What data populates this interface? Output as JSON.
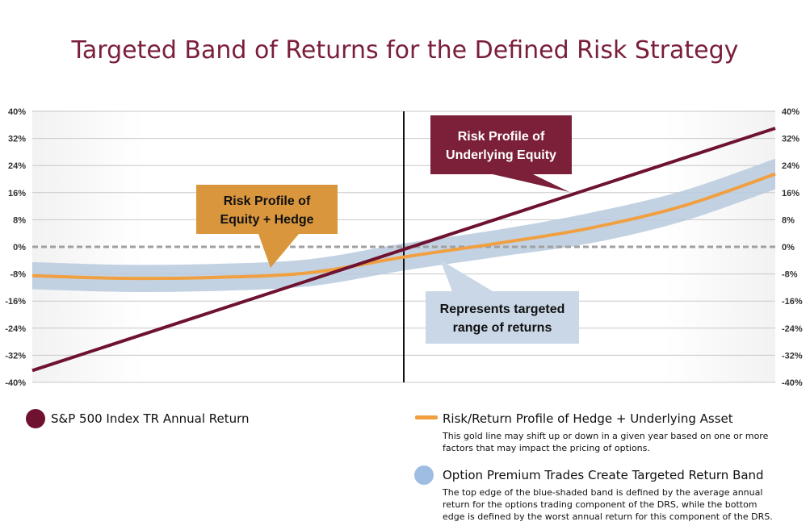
{
  "title": "Targeted Band of Returns for the Defined Risk Strategy",
  "colors": {
    "title": "#7a1e3a",
    "sp500": "#6e1230",
    "hedge": "#f0a040",
    "band": "#b8cade",
    "legend_band": "#9fbde3",
    "callout_equity": "#7b2038",
    "callout_hedge": "#d9963d",
    "callout_band": "#c9d7e6",
    "zero_line": "#a0a0a0",
    "grid": "#c8c8c8"
  },
  "chart_data": {
    "type": "line",
    "title": "Targeted Band of Returns for the Defined Risk Strategy",
    "xlabel": "",
    "ylabel": "",
    "ylim": [
      -40,
      40
    ],
    "y_ticks": [
      "40%",
      "32%",
      "24%",
      "16%",
      "8%",
      "0%",
      "-8%",
      "-16%",
      "-24%",
      "-32%",
      "-40%"
    ],
    "y_tick_values": [
      40,
      32,
      24,
      16,
      8,
      0,
      -8,
      -16,
      -24,
      -32,
      -40
    ],
    "x_range": [
      -40,
      40
    ],
    "grid": true,
    "vertical_reference": 0,
    "series": [
      {
        "name": "S&P 500 Index TR Annual Return",
        "x": [
          -40,
          40
        ],
        "y": [
          -36.5,
          35
        ]
      },
      {
        "name": "Risk/Return Profile of Hedge + Underlying Asset",
        "x": [
          -40,
          -30,
          -20,
          -10,
          0,
          10,
          20,
          30,
          40
        ],
        "y": [
          -8.5,
          -9.3,
          -9,
          -7.6,
          -3,
          1,
          5.5,
          12,
          21.5
        ]
      },
      {
        "name": "Option Premium Trades Create Targeted Return Band",
        "x": [
          -40,
          -30,
          -20,
          -10,
          0,
          10,
          20,
          30,
          40
        ],
        "y_top": [
          -4.5,
          -5.3,
          -5,
          -3.6,
          1,
          5,
          10,
          16.5,
          26
        ],
        "y_bottom": [
          -12.5,
          -13.3,
          -13,
          -11.6,
          -7,
          -3,
          1,
          7.5,
          17
        ]
      }
    ],
    "annotations": [
      {
        "id": "equity",
        "lines": [
          "Risk Profile of",
          "Underlying Equity"
        ]
      },
      {
        "id": "hedge",
        "lines": [
          "Risk Profile of",
          "Equity + Hedge"
        ]
      },
      {
        "id": "band",
        "lines": [
          "Represents targeted",
          "range of returns"
        ]
      }
    ]
  },
  "legend": {
    "sp500_label": "S&P 500 Index TR Annual Return",
    "hedge_label": "Risk/Return Profile of Hedge + Underlying Asset",
    "hedge_note_1": "This gold line may shift up or down in a given year based on one or more",
    "hedge_note_2": "factors that may impact the pricing of options.",
    "band_label": "Option Premium Trades Create Targeted Return Band",
    "band_note_1": "The top edge of the blue-shaded band is defined by the average annual",
    "band_note_2": "return for the options trading component of the DRS, while the bottom",
    "band_note_3": "edge is defined by the worst annual return for this component of the DRS."
  }
}
